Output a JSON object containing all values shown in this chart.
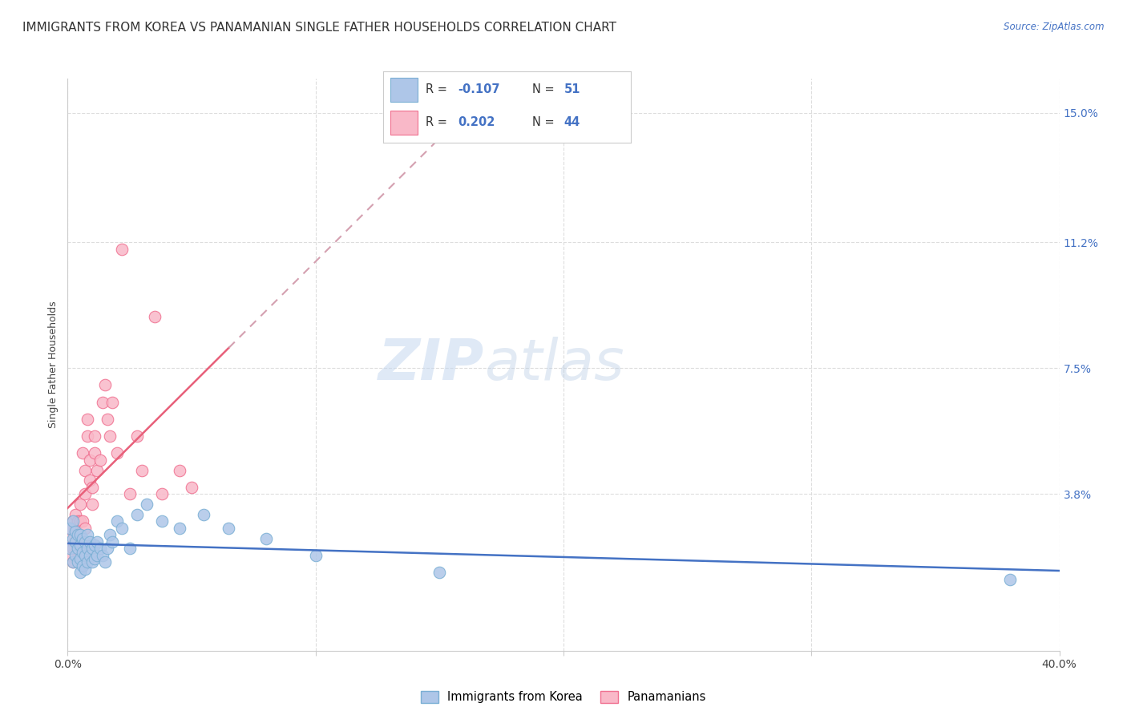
{
  "title": "IMMIGRANTS FROM KOREA VS PANAMANIAN SINGLE FATHER HOUSEHOLDS CORRELATION CHART",
  "source": "Source: ZipAtlas.com",
  "ylabel": "Single Father Households",
  "ytick_labels": [
    "",
    "3.8%",
    "7.5%",
    "11.2%",
    "15.0%"
  ],
  "ytick_values": [
    0.0,
    0.038,
    0.075,
    0.112,
    0.15
  ],
  "xlim": [
    0.0,
    0.4
  ],
  "ylim": [
    -0.008,
    0.16
  ],
  "series1_name": "Immigrants from Korea",
  "series1_color": "#aec6e8",
  "series1_edge_color": "#7aafd4",
  "series2_name": "Panamanians",
  "series2_color": "#f9b8c8",
  "series2_edge_color": "#f07090",
  "regression1_color": "#4472c4",
  "regression2_color": "#e8607a",
  "regression2_dash_color": "#d4a0b0",
  "watermark_zip": "ZIP",
  "watermark_atlas": "atlas",
  "background_color": "#ffffff",
  "grid_color": "#dddddd",
  "title_fontsize": 11,
  "axis_label_fontsize": 9,
  "tick_fontsize": 10,
  "korea_x": [
    0.001,
    0.001,
    0.002,
    0.002,
    0.002,
    0.003,
    0.003,
    0.003,
    0.004,
    0.004,
    0.004,
    0.005,
    0.005,
    0.005,
    0.005,
    0.006,
    0.006,
    0.006,
    0.007,
    0.007,
    0.007,
    0.008,
    0.008,
    0.008,
    0.009,
    0.009,
    0.01,
    0.01,
    0.011,
    0.011,
    0.012,
    0.012,
    0.013,
    0.014,
    0.015,
    0.016,
    0.017,
    0.018,
    0.02,
    0.022,
    0.025,
    0.028,
    0.032,
    0.038,
    0.045,
    0.055,
    0.065,
    0.08,
    0.1,
    0.15,
    0.38
  ],
  "korea_y": [
    0.022,
    0.028,
    0.018,
    0.025,
    0.03,
    0.02,
    0.024,
    0.027,
    0.018,
    0.022,
    0.026,
    0.015,
    0.019,
    0.023,
    0.026,
    0.017,
    0.021,
    0.025,
    0.016,
    0.02,
    0.024,
    0.018,
    0.022,
    0.026,
    0.02,
    0.024,
    0.018,
    0.022,
    0.019,
    0.023,
    0.02,
    0.024,
    0.022,
    0.02,
    0.018,
    0.022,
    0.026,
    0.024,
    0.03,
    0.028,
    0.022,
    0.032,
    0.035,
    0.03,
    0.028,
    0.032,
    0.028,
    0.025,
    0.02,
    0.015,
    0.013
  ],
  "panama_x": [
    0.001,
    0.001,
    0.001,
    0.002,
    0.002,
    0.002,
    0.003,
    0.003,
    0.003,
    0.004,
    0.004,
    0.004,
    0.005,
    0.005,
    0.005,
    0.006,
    0.006,
    0.007,
    0.007,
    0.007,
    0.008,
    0.008,
    0.009,
    0.009,
    0.01,
    0.01,
    0.011,
    0.011,
    0.012,
    0.013,
    0.014,
    0.015,
    0.016,
    0.017,
    0.018,
    0.02,
    0.022,
    0.025,
    0.028,
    0.03,
    0.035,
    0.038,
    0.045,
    0.05
  ],
  "panama_y": [
    0.02,
    0.025,
    0.028,
    0.018,
    0.022,
    0.03,
    0.024,
    0.028,
    0.032,
    0.022,
    0.026,
    0.03,
    0.025,
    0.03,
    0.035,
    0.03,
    0.05,
    0.028,
    0.038,
    0.045,
    0.055,
    0.06,
    0.042,
    0.048,
    0.035,
    0.04,
    0.05,
    0.055,
    0.045,
    0.048,
    0.065,
    0.07,
    0.06,
    0.055,
    0.065,
    0.05,
    0.11,
    0.038,
    0.055,
    0.045,
    0.09,
    0.038,
    0.045,
    0.04
  ],
  "legend_R1": "-0.107",
  "legend_N1": "51",
  "legend_R2": "0.202",
  "legend_N2": "44"
}
